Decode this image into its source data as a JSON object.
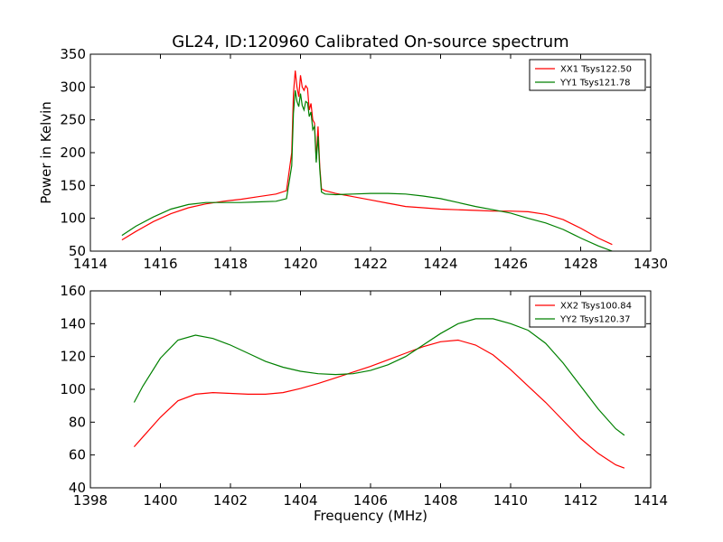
{
  "figure": {
    "title": "GL24, ID:120960 Calibrated On-source spectrum",
    "xlabel": "Frequency (MHz)",
    "ylabel": "Power in Kelvin"
  },
  "chart_data": [
    {
      "type": "line",
      "title": "GL24, ID:120960 Calibrated On-source spectrum",
      "xlabel": "",
      "ylabel": "Power in Kelvin",
      "xlim": [
        1414,
        1430
      ],
      "ylim": [
        50,
        350
      ],
      "xticks": [
        1414,
        1416,
        1418,
        1420,
        1422,
        1424,
        1426,
        1428,
        1430
      ],
      "yticks": [
        50,
        100,
        150,
        200,
        250,
        300,
        350
      ],
      "legend_placement": "top-right",
      "series": [
        {
          "name": "XX1 Tsys122.50",
          "color": "#ff0000",
          "x": [
            1414.9,
            1415.3,
            1415.8,
            1416.3,
            1416.8,
            1417.3,
            1417.8,
            1418.3,
            1418.8,
            1419.3,
            1419.6,
            1419.75,
            1419.8,
            1419.85,
            1419.9,
            1419.95,
            1420.0,
            1420.05,
            1420.1,
            1420.15,
            1420.2,
            1420.25,
            1420.3,
            1420.35,
            1420.4,
            1420.45,
            1420.5,
            1420.55,
            1420.6,
            1420.7,
            1421.0,
            1421.5,
            1422.0,
            1422.5,
            1423.0,
            1423.5,
            1424.0,
            1424.5,
            1425.0,
            1425.5,
            1426.0,
            1426.5,
            1427.0,
            1427.5,
            1428.0,
            1428.5,
            1428.9
          ],
          "y": [
            67,
            80,
            95,
            107,
            116,
            122,
            126,
            129,
            133,
            137,
            142,
            200,
            290,
            325,
            300,
            285,
            318,
            300,
            295,
            302,
            298,
            265,
            275,
            250,
            245,
            190,
            240,
            180,
            145,
            142,
            138,
            133,
            128,
            123,
            118,
            116,
            114,
            113,
            112,
            111,
            111,
            110,
            106,
            98,
            85,
            70,
            60
          ]
        },
        {
          "name": "YY1 Tsys121.78",
          "color": "#008000",
          "x": [
            1414.9,
            1415.3,
            1415.8,
            1416.3,
            1416.8,
            1417.3,
            1417.8,
            1418.3,
            1418.8,
            1419.3,
            1419.6,
            1419.75,
            1419.8,
            1419.85,
            1419.9,
            1419.95,
            1420.0,
            1420.05,
            1420.1,
            1420.15,
            1420.2,
            1420.25,
            1420.3,
            1420.35,
            1420.4,
            1420.45,
            1420.5,
            1420.55,
            1420.6,
            1420.7,
            1421.0,
            1421.5,
            1422.0,
            1422.5,
            1423.0,
            1423.5,
            1424.0,
            1424.5,
            1425.0,
            1425.5,
            1426.0,
            1426.5,
            1427.0,
            1427.5,
            1428.0,
            1428.5,
            1428.9
          ],
          "y": [
            74,
            88,
            102,
            114,
            121,
            124,
            124,
            124,
            125,
            126,
            130,
            180,
            260,
            295,
            278,
            270,
            290,
            272,
            265,
            278,
            276,
            255,
            262,
            235,
            240,
            185,
            225,
            175,
            140,
            137,
            136,
            137,
            138,
            138,
            137,
            134,
            130,
            124,
            118,
            113,
            108,
            100,
            93,
            83,
            70,
            58,
            50
          ]
        }
      ]
    },
    {
      "type": "line",
      "title": "",
      "xlabel": "Frequency (MHz)",
      "ylabel": "",
      "xlim": [
        1398,
        1414
      ],
      "ylim": [
        40,
        160
      ],
      "xticks": [
        1398,
        1400,
        1402,
        1404,
        1406,
        1408,
        1410,
        1412,
        1414
      ],
      "yticks": [
        40,
        60,
        80,
        100,
        120,
        140,
        160
      ],
      "legend_placement": "top-right",
      "series": [
        {
          "name": "XX2 Tsys100.84",
          "color": "#ff0000",
          "x": [
            1399.25,
            1399.5,
            1400.0,
            1400.5,
            1401.0,
            1401.5,
            1402.0,
            1402.5,
            1403.0,
            1403.5,
            1404.0,
            1404.5,
            1405.0,
            1405.5,
            1406.0,
            1406.5,
            1407.0,
            1407.5,
            1408.0,
            1408.5,
            1409.0,
            1409.5,
            1410.0,
            1410.5,
            1411.0,
            1411.5,
            1412.0,
            1412.5,
            1413.0,
            1413.25
          ],
          "y": [
            65,
            71,
            83,
            93,
            97,
            98,
            97.5,
            97,
            97,
            98,
            100.5,
            103.5,
            107,
            110.5,
            114,
            118,
            122,
            126,
            129,
            130,
            127,
            121,
            112,
            102,
            92,
            81,
            70,
            61,
            54,
            52
          ]
        },
        {
          "name": "YY2 Tsys120.37",
          "color": "#008000",
          "x": [
            1399.25,
            1399.5,
            1400.0,
            1400.5,
            1401.0,
            1401.5,
            1402.0,
            1402.5,
            1403.0,
            1403.5,
            1404.0,
            1404.5,
            1405.0,
            1405.5,
            1406.0,
            1406.5,
            1407.0,
            1407.5,
            1408.0,
            1408.5,
            1409.0,
            1409.5,
            1410.0,
            1410.5,
            1411.0,
            1411.5,
            1412.0,
            1412.5,
            1413.0,
            1413.25
          ],
          "y": [
            92,
            102,
            119,
            130,
            133,
            131,
            127,
            122,
            117,
            113.5,
            111,
            109.5,
            109,
            109.5,
            111.5,
            115,
            120,
            127,
            134,
            140,
            143,
            143,
            140,
            136,
            128,
            116,
            102,
            88,
            76,
            72
          ]
        }
      ]
    }
  ]
}
